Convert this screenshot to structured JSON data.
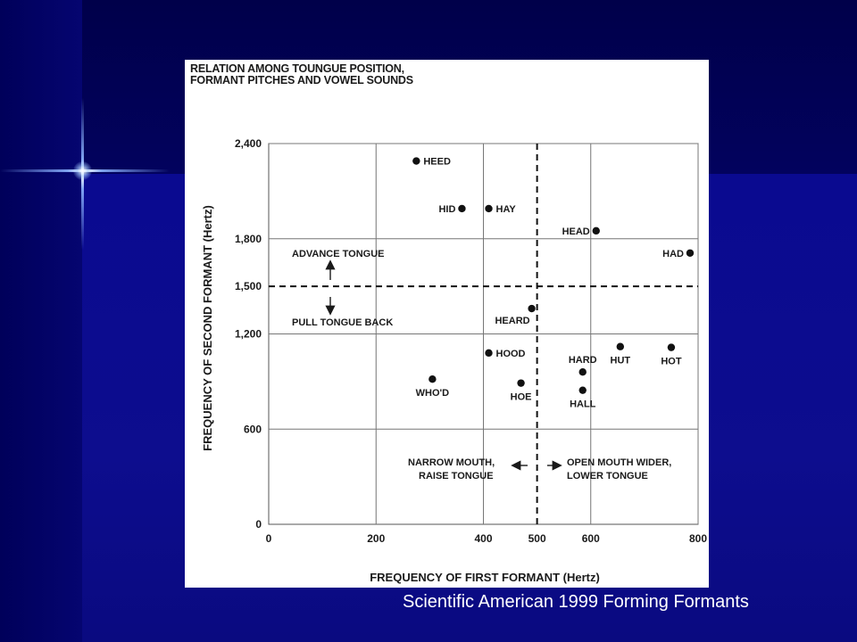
{
  "slide": {
    "caption": "Scientific American 1999 Forming Formants"
  },
  "chart_data": {
    "type": "scatter",
    "title_lines": [
      "RELATION AMONG TOUNGUE POSITION,",
      "FORMANT PITCHES AND VOWEL SOUNDS"
    ],
    "xlabel": "FREQUENCY OF FIRST FORMANT (Hertz)",
    "ylabel": "FREQUENCY OF SECOND FORMANT (Hertz)",
    "xlim": [
      0,
      800
    ],
    "ylim": [
      0,
      2400
    ],
    "xticks": [
      {
        "value": 0,
        "label": "0"
      },
      {
        "value": 200,
        "label": "200"
      },
      {
        "value": 400,
        "label": "400"
      },
      {
        "value": 500,
        "label": "500"
      },
      {
        "value": 600,
        "label": "600"
      },
      {
        "value": 800,
        "label": "800"
      }
    ],
    "yticks": [
      {
        "value": 0,
        "label": "0"
      },
      {
        "value": 600,
        "label": "600"
      },
      {
        "value": 1200,
        "label": "1,200"
      },
      {
        "value": 1500,
        "label": "1,500"
      },
      {
        "value": 1800,
        "label": "1,800"
      },
      {
        "value": 2400,
        "label": "2,400"
      }
    ],
    "grid_x": [
      200,
      400,
      600,
      800
    ],
    "grid_y": [
      600,
      1200,
      1800,
      2400
    ],
    "dashed_x": 500,
    "dashed_y": 1500,
    "points": [
      {
        "label": "HEED",
        "x": 275,
        "y": 2290,
        "label_pos": "right"
      },
      {
        "label": "HID",
        "x": 360,
        "y": 1990,
        "label_pos": "left"
      },
      {
        "label": "HAY",
        "x": 410,
        "y": 1990,
        "label_pos": "right"
      },
      {
        "label": "HEAD",
        "x": 610,
        "y": 1850,
        "label_pos": "left"
      },
      {
        "label": "HAD",
        "x": 785,
        "y": 1710,
        "label_pos": "left"
      },
      {
        "label": "HEARD",
        "x": 490,
        "y": 1360,
        "label_pos": "below-left"
      },
      {
        "label": "HOOD",
        "x": 410,
        "y": 1080,
        "label_pos": "right"
      },
      {
        "label": "HUT",
        "x": 655,
        "y": 1120,
        "label_pos": "below"
      },
      {
        "label": "HOT",
        "x": 750,
        "y": 1115,
        "label_pos": "below"
      },
      {
        "label": "HARD",
        "x": 585,
        "y": 960,
        "label_pos": "above"
      },
      {
        "label": "HALL",
        "x": 585,
        "y": 845,
        "label_pos": "below"
      },
      {
        "label": "WHO'D",
        "x": 305,
        "y": 915,
        "label_pos": "below"
      },
      {
        "label": "HOE",
        "x": 470,
        "y": 890,
        "label_pos": "below"
      }
    ],
    "annotations": {
      "advance": "ADVANCE TONGUE",
      "pull_back": "PULL TONGUE BACK",
      "narrow_1": "NARROW MOUTH,",
      "narrow_2": "RAISE TONGUE",
      "open_1": "OPEN MOUTH WIDER,",
      "open_2": "LOWER TONGUE"
    },
    "grid": true,
    "legend": "none"
  }
}
